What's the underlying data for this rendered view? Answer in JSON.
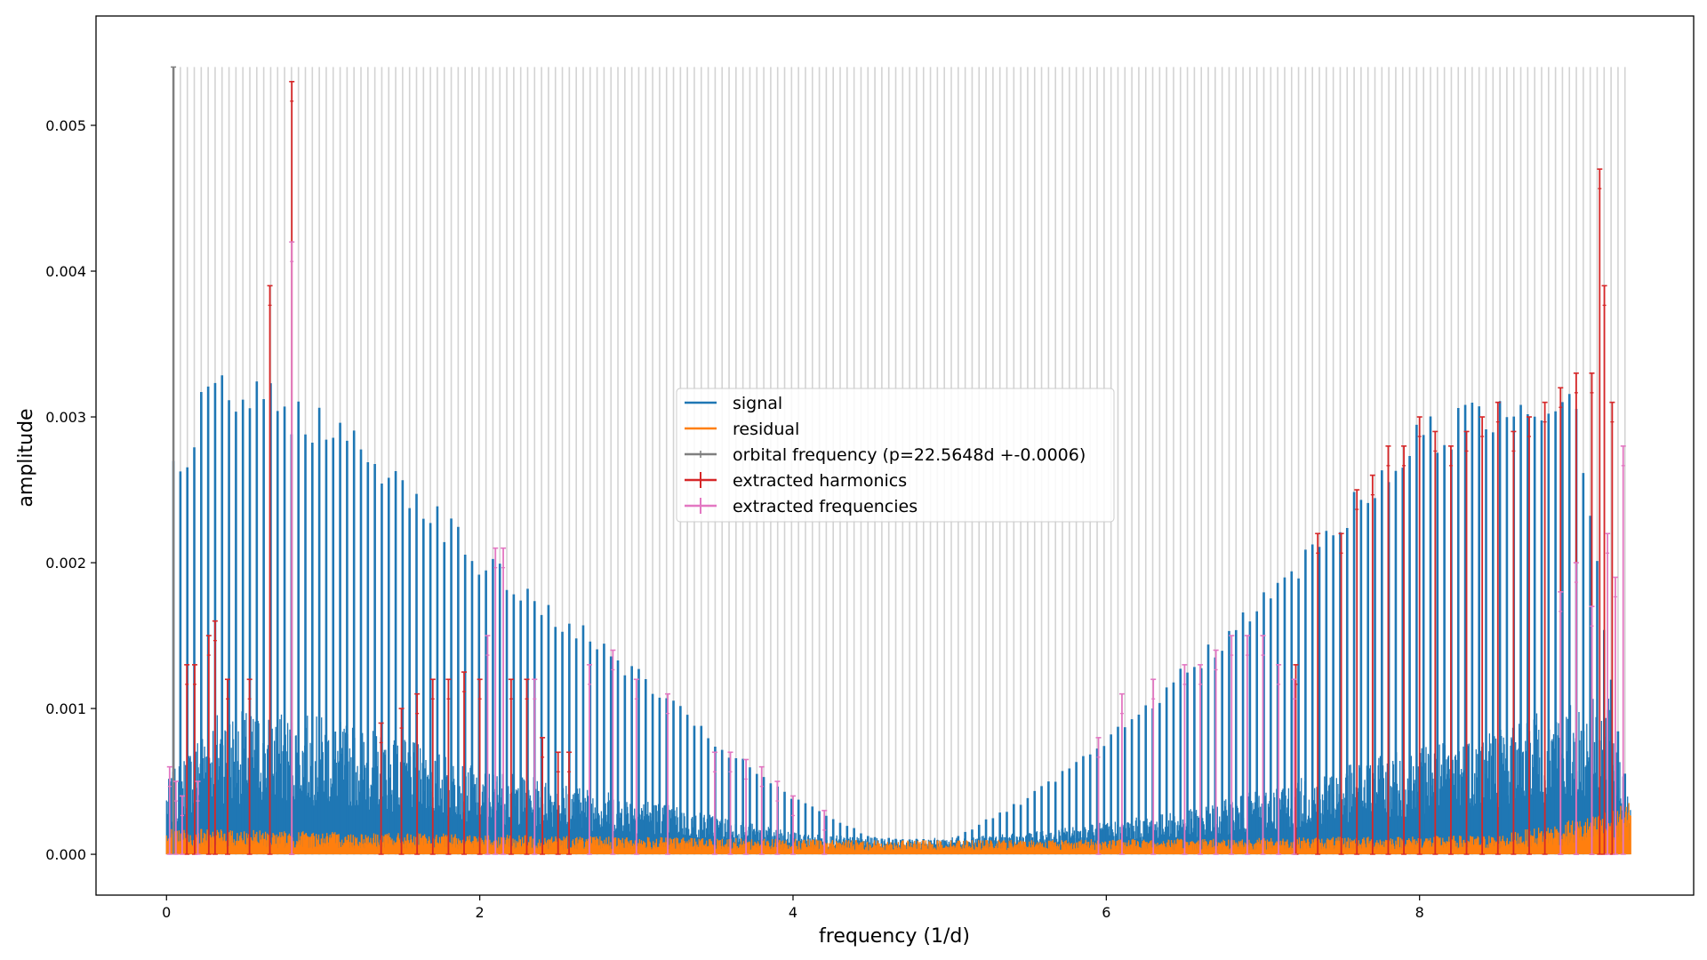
{
  "chart_data": {
    "type": "line",
    "title": "",
    "xlabel": "frequency (1/d)",
    "ylabel": "amplitude",
    "xlim": [
      -0.45,
      9.75
    ],
    "ylim": [
      -0.00028,
      0.00575
    ],
    "xticks": [
      0,
      2,
      4,
      6,
      8
    ],
    "xtick_labels": [
      "0",
      "2",
      "4",
      "6",
      "8"
    ],
    "yticks": [
      0.0,
      0.001,
      0.002,
      0.003,
      0.004,
      0.005
    ],
    "ytick_labels": [
      "0.000",
      "0.001",
      "0.002",
      "0.003",
      "0.004",
      "0.005"
    ],
    "grid": false,
    "legend_position": "center",
    "colors": {
      "signal": "#1f77b4",
      "residual": "#ff7f0e",
      "orbital": "#7f7f7f",
      "harmonics": "#d62728",
      "frequencies": "#e377c2",
      "harmonic_grid": "#d3d3d3"
    },
    "orbital_frequency": 0.04434,
    "orbital_amplitude": 0.0054,
    "frequency_max": 9.35,
    "series": [
      {
        "name": "signal",
        "comb_peaks": [
          [
            0.08,
            0.0027
          ],
          [
            0.25,
            0.0033
          ],
          [
            0.5,
            0.0033
          ],
          [
            1.0,
            0.0031
          ],
          [
            1.5,
            0.0027
          ],
          [
            2.0,
            0.0021
          ],
          [
            2.5,
            0.0017
          ],
          [
            3.0,
            0.0013
          ],
          [
            3.5,
            0.0008
          ],
          [
            4.0,
            0.0004
          ],
          [
            4.5,
            0.00012
          ],
          [
            5.0,
            0.0001
          ],
          [
            5.5,
            0.0004
          ],
          [
            6.0,
            0.0008
          ],
          [
            6.5,
            0.0013
          ],
          [
            7.0,
            0.0018
          ],
          [
            7.5,
            0.0024
          ],
          [
            8.0,
            0.003
          ],
          [
            8.5,
            0.0032
          ],
          [
            9.0,
            0.0033
          ],
          [
            9.3,
            0.0006
          ]
        ],
        "noise_floor": [
          [
            0.0,
            0.0005
          ],
          [
            0.3,
            0.001
          ],
          [
            1.0,
            0.00095
          ],
          [
            1.5,
            0.0008
          ],
          [
            2.0,
            0.0006
          ],
          [
            3.0,
            0.0004
          ],
          [
            4.0,
            0.00015
          ],
          [
            4.7,
            0.0001
          ],
          [
            5.5,
            0.00015
          ],
          [
            6.5,
            0.0003
          ],
          [
            7.5,
            0.0006
          ],
          [
            8.5,
            0.0009
          ],
          [
            9.2,
            0.0011
          ],
          [
            9.35,
            0.0004
          ]
        ]
      },
      {
        "name": "residual",
        "level": [
          [
            0.0,
            0.00015
          ],
          [
            1.0,
            0.00013
          ],
          [
            3.0,
            0.0001
          ],
          [
            4.7,
            8e-05
          ],
          [
            6.5,
            9e-05
          ],
          [
            8.5,
            0.00011
          ],
          [
            9.1,
            0.00022
          ],
          [
            9.35,
            0.0003
          ]
        ]
      },
      {
        "name": "extracted harmonics",
        "points": [
          [
            0.13,
            0.0013
          ],
          [
            0.18,
            0.0013
          ],
          [
            0.27,
            0.0015
          ],
          [
            0.31,
            0.0016
          ],
          [
            0.39,
            0.0012
          ],
          [
            0.53,
            0.0012
          ],
          [
            0.66,
            0.0039
          ],
          [
            0.8,
            0.0053
          ],
          [
            1.37,
            0.0009
          ],
          [
            1.5,
            0.001
          ],
          [
            1.6,
            0.0011
          ],
          [
            1.7,
            0.0012
          ],
          [
            1.8,
            0.0012
          ],
          [
            1.9,
            0.00125
          ],
          [
            2.0,
            0.0012
          ],
          [
            2.2,
            0.0012
          ],
          [
            2.3,
            0.0012
          ],
          [
            2.4,
            0.0008
          ],
          [
            2.5,
            0.0007
          ],
          [
            2.57,
            0.0007
          ],
          [
            7.21,
            0.0013
          ],
          [
            7.35,
            0.0022
          ],
          [
            7.5,
            0.0022
          ],
          [
            7.6,
            0.0025
          ],
          [
            7.7,
            0.0026
          ],
          [
            7.8,
            0.0028
          ],
          [
            7.9,
            0.0028
          ],
          [
            8.0,
            0.003
          ],
          [
            8.1,
            0.0029
          ],
          [
            8.2,
            0.0028
          ],
          [
            8.3,
            0.0029
          ],
          [
            8.4,
            0.003
          ],
          [
            8.5,
            0.0031
          ],
          [
            8.6,
            0.0029
          ],
          [
            8.7,
            0.003
          ],
          [
            8.8,
            0.0031
          ],
          [
            8.9,
            0.0032
          ],
          [
            9.0,
            0.0033
          ],
          [
            9.1,
            0.0033
          ],
          [
            9.15,
            0.0047
          ],
          [
            9.18,
            0.0039
          ],
          [
            9.23,
            0.0031
          ]
        ]
      },
      {
        "name": "extracted frequencies",
        "points": [
          [
            0.02,
            0.0006
          ],
          [
            0.06,
            0.0005
          ],
          [
            0.1,
            0.0004
          ],
          [
            0.2,
            0.0005
          ],
          [
            0.8,
            0.0042
          ],
          [
            2.05,
            0.0015
          ],
          [
            2.1,
            0.0021
          ],
          [
            2.15,
            0.0021
          ],
          [
            2.35,
            0.0012
          ],
          [
            2.7,
            0.0013
          ],
          [
            2.85,
            0.0014
          ],
          [
            3.0,
            0.0012
          ],
          [
            3.2,
            0.0011
          ],
          [
            3.5,
            0.0007
          ],
          [
            3.6,
            0.0007
          ],
          [
            3.7,
            0.00065
          ],
          [
            3.8,
            0.0006
          ],
          [
            3.9,
            0.0005
          ],
          [
            4.0,
            0.0004
          ],
          [
            4.2,
            0.0003
          ],
          [
            5.95,
            0.0008
          ],
          [
            6.1,
            0.0011
          ],
          [
            6.3,
            0.0012
          ],
          [
            6.5,
            0.0013
          ],
          [
            6.6,
            0.0013
          ],
          [
            6.7,
            0.0014
          ],
          [
            6.8,
            0.0015
          ],
          [
            6.9,
            0.0015
          ],
          [
            7.0,
            0.0015
          ],
          [
            7.1,
            0.0013
          ],
          [
            7.2,
            0.0012
          ],
          [
            8.9,
            0.0018
          ],
          [
            9.0,
            0.002
          ],
          [
            9.1,
            0.0017
          ],
          [
            9.2,
            0.0022
          ],
          [
            9.25,
            0.0019
          ],
          [
            9.3,
            0.0028
          ]
        ]
      },
      {
        "name": "orbital frequency (p=22.5648d +-0.0006)"
      }
    ]
  }
}
